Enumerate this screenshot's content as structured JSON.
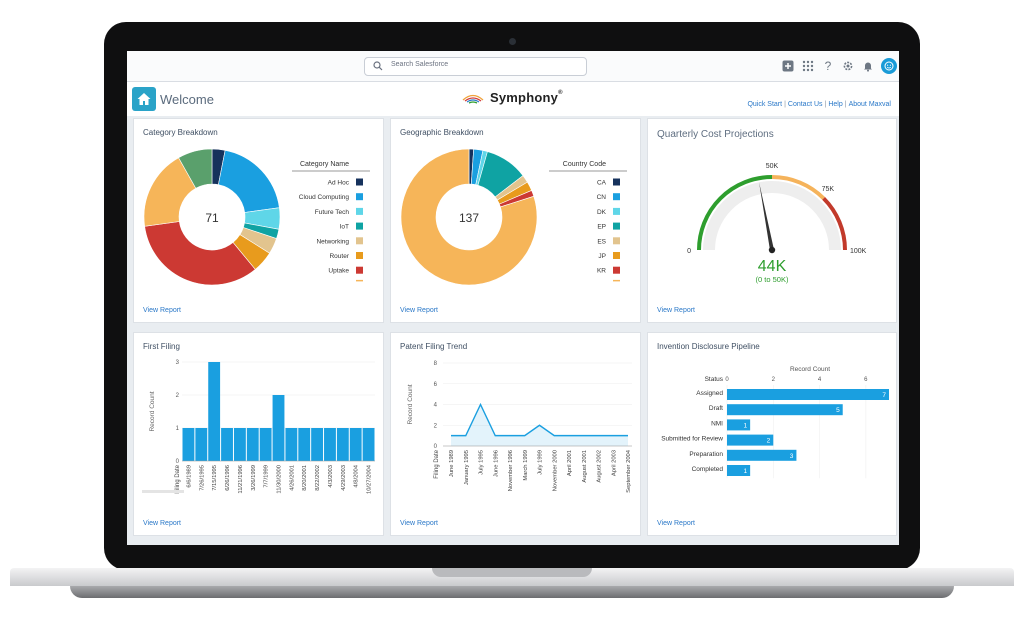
{
  "search": {
    "placeholder": "Search Salesforce"
  },
  "header": {
    "title": "Welcome",
    "logo_name": "Symphony",
    "logo_mark": "®",
    "links": [
      "Quick Start",
      "Contact Us",
      "Help",
      "About Maxval"
    ]
  },
  "top_icons": [
    "plus-icon",
    "app-grid-icon",
    "help-icon",
    "gear-icon",
    "bell-icon",
    "user-avatar-icon"
  ],
  "view_report_label": "View Report",
  "cards": {
    "category": {
      "title": "Category Breakdown"
    },
    "geographic": {
      "title": "Geographic Breakdown"
    },
    "quarterly": {
      "title": "Quarterly Cost Projections"
    },
    "first_filing": {
      "title": "First Filing"
    },
    "patent_trend": {
      "title": "Patent Filing Trend"
    },
    "invention": {
      "title": "Invention Disclosure Pipeline"
    }
  },
  "chart_data": [
    {
      "type": "pie",
      "title": "Category Breakdown",
      "center_label": "71",
      "legend_title": "Category Name",
      "categories": [
        "Ad Hoc",
        "Cloud Computing",
        "Future Tech",
        "IoT",
        "Networking",
        "Router",
        "Uptake"
      ],
      "colors": [
        "#16325c",
        "#1a9fe0",
        "#5fd6e8",
        "#0fa3a3",
        "#e2c48e",
        "#e89b1d",
        "#cc3933"
      ],
      "slices": [
        {
          "label": "Ad Hoc",
          "value": 2.2,
          "color": "#16325c"
        },
        {
          "label": "Cloud Computing",
          "value": 14,
          "color": "#1a9fe0"
        },
        {
          "label": "Future Tech",
          "value": 3.6,
          "color": "#5fd6e8"
        },
        {
          "label": "IoT",
          "value": 1.6,
          "color": "#0fa3a3"
        },
        {
          "label": "Networking",
          "value": 2.7,
          "color": "#e2c48e"
        },
        {
          "label": "Router",
          "value": 3.6,
          "color": "#e89b1d"
        },
        {
          "label": "Uptake",
          "value": 24,
          "color": "#cc3933"
        },
        {
          "label": "",
          "value": 13.5,
          "color": "#f6b559"
        },
        {
          "label": "",
          "value": 5.8,
          "color": "#5aa06c"
        }
      ]
    },
    {
      "type": "pie",
      "title": "Geographic Breakdown",
      "center_label": "137",
      "legend_title": "Country Code",
      "categories": [
        "CA",
        "CN",
        "DK",
        "EP",
        "ES",
        "JP",
        "KR"
      ],
      "colors": [
        "#16325c",
        "#1a9fe0",
        "#5fd6e8",
        "#0fa3a3",
        "#e2c48e",
        "#e89b1d",
        "#cc3933"
      ],
      "slices": [
        {
          "label": "CA",
          "value": 1.5,
          "color": "#16325c"
        },
        {
          "label": "CN",
          "value": 3,
          "color": "#1a9fe0"
        },
        {
          "label": "DK",
          "value": 1.5,
          "color": "#5fd6e8"
        },
        {
          "label": "EP",
          "value": 14,
          "color": "#0fa3a3"
        },
        {
          "label": "ES",
          "value": 2.5,
          "color": "#e2c48e"
        },
        {
          "label": "JP",
          "value": 3,
          "color": "#e89b1d"
        },
        {
          "label": "KR",
          "value": 2,
          "color": "#cc3933"
        },
        {
          "label": "",
          "value": 109.5,
          "color": "#f6b559"
        }
      ]
    },
    {
      "type": "gauge",
      "title": "Quarterly Cost Projections",
      "value": 44,
      "min": 0,
      "max": 100,
      "bands": [
        {
          "from": 0,
          "to": 50,
          "color": "#2e9e2e"
        },
        {
          "from": 50,
          "to": 75,
          "color": "#f5b35b"
        },
        {
          "from": 75,
          "to": 100,
          "color": "#c23a2b"
        }
      ],
      "tick_labels": [
        "0",
        "50K",
        "75K",
        "100K"
      ],
      "tick_values": [
        0,
        50,
        75,
        100
      ],
      "value_label": "44K",
      "range_label": "(0 to 50K)"
    },
    {
      "type": "bar",
      "title": "First Filing",
      "xlabel": "Filing Date",
      "ylabel": "Record Count",
      "yticks": [
        "0",
        "1",
        "2",
        "3"
      ],
      "ylim": [
        0,
        3
      ],
      "categories": [
        "6/6/1989",
        "7/26/1995",
        "7/15/1995",
        "6/26/1996",
        "11/21/1996",
        "3/26/1999",
        "7/7/1999",
        "11/30/2000",
        "4/26/2001",
        "8/20/2001",
        "8/22/2002",
        "4/3/2003",
        "4/29/2003",
        "4/8/2004",
        "10/27/2004"
      ],
      "values": [
        1,
        1,
        3,
        1,
        1,
        1,
        1,
        2,
        1,
        1,
        1,
        1,
        1,
        1,
        1
      ],
      "color": "#1a9fe0"
    },
    {
      "type": "area",
      "title": "Patent Filing Trend",
      "xlabel": "Filing Date",
      "ylabel": "Record Count",
      "yticks": [
        "0",
        "2",
        "4",
        "6",
        "8"
      ],
      "ylim": [
        0,
        8
      ],
      "categories": [
        "June 1989",
        "January 1995",
        "July 1995",
        "June 1996",
        "November 1996",
        "March 1999",
        "July 1999",
        "November 2000",
        "April 2001",
        "August 2001",
        "August 2002",
        "April 2003",
        "September 2004"
      ],
      "values": [
        1,
        1,
        4,
        1,
        1,
        1,
        2,
        1,
        1,
        1,
        1,
        1,
        1
      ],
      "color": "#1a9fe0"
    },
    {
      "type": "bar",
      "orientation": "horizontal",
      "title": "Invention Disclosure Pipeline",
      "xlabel": "Record Count",
      "ylabel": "Status",
      "xticks": [
        "0",
        "2",
        "4",
        "6"
      ],
      "xlim": [
        0,
        7
      ],
      "categories": [
        "Assigned",
        "Draft",
        "NMI",
        "Submitted for Review",
        "Preparation",
        "Completed"
      ],
      "values": [
        7,
        5,
        1,
        2,
        3,
        1
      ],
      "color": "#1a9fe0"
    }
  ]
}
